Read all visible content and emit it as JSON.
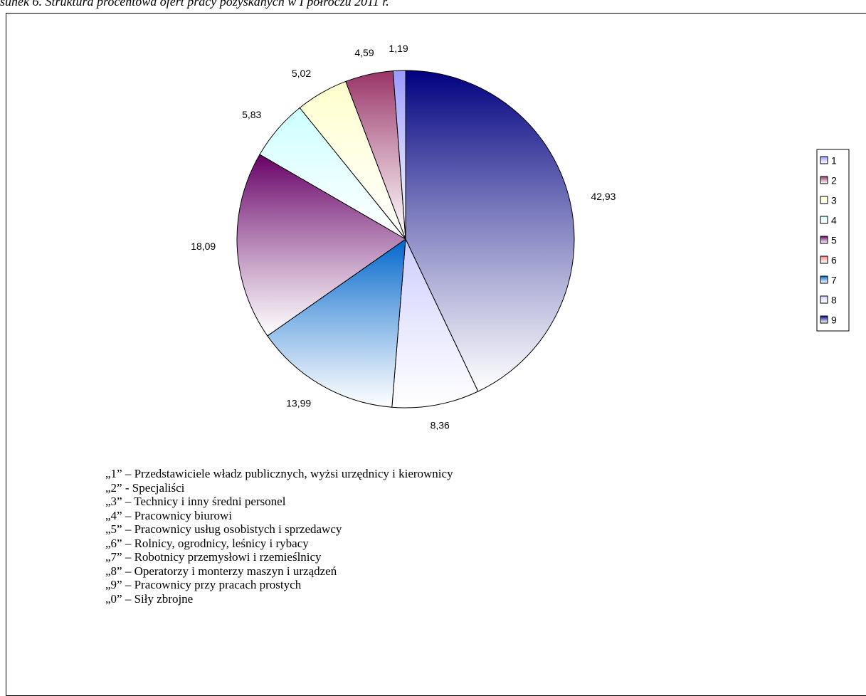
{
  "header": {
    "title": "sunek 6. Struktura procentowa ofert pracy pozyskanych w I półroczu 2011 r."
  },
  "chart_data": {
    "type": "pie",
    "categories": [
      "1",
      "2",
      "3",
      "4",
      "5",
      "6",
      "7",
      "8",
      "9"
    ],
    "values": [
      1.19,
      4.59,
      5.02,
      5.83,
      18.09,
      0,
      13.99,
      8.36,
      42.93
    ],
    "value_labels": [
      "1,19",
      "4,59",
      "5,02",
      "5,83",
      "18,09",
      null,
      "13,99",
      "8,36",
      "42,93"
    ],
    "colors": [
      "#9999ff",
      "#993366",
      "#ffffcc",
      "#ccffff",
      "#660066",
      "#ff8080",
      "#0066cc",
      "#ccccff",
      "#000080"
    ],
    "legend": "right"
  },
  "notes": [
    "„1” – Przedstawiciele władz publicznych, wyżsi urzędnicy i kierownicy",
    "„2” - Specjaliści",
    "„3” – Technicy i inny średni personel",
    "„4” – Pracownicy biurowi",
    "„5” – Pracownicy usług osobistych i sprzedawcy",
    "„6” – Rolnicy, ogrodnicy, leśnicy i rybacy",
    "„7” – Robotnicy przemysłowi i rzemieślnicy",
    "„8” – Operatorzy i monterzy maszyn i urządzeń",
    "„9” – Pracownicy przy pracach prostych",
    "„0” – Siły zbrojne"
  ]
}
